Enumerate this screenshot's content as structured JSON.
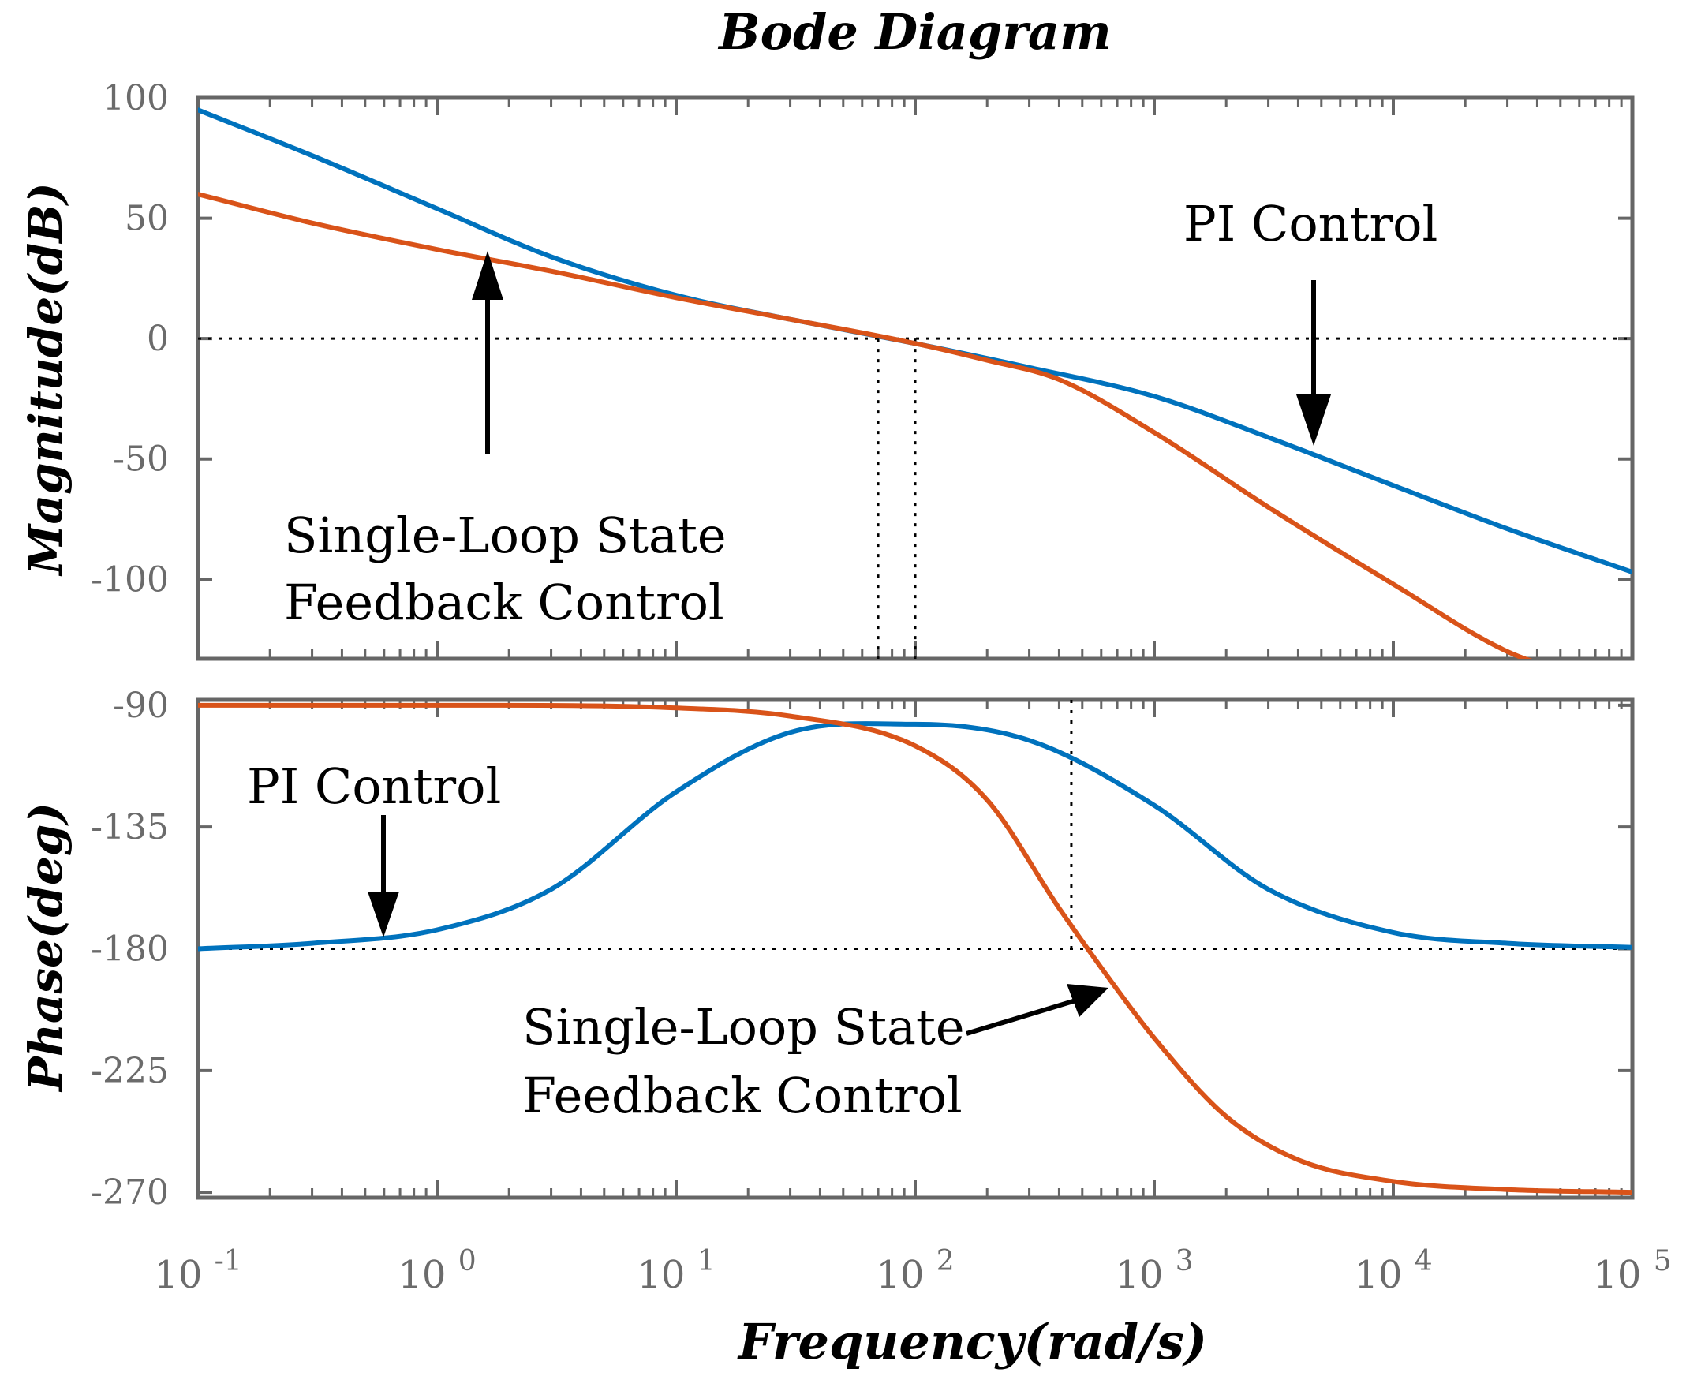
{
  "chart_data": {
    "type": "line",
    "title": "Bode Diagram",
    "xlabel": "Frequency(rad/s)",
    "xscale": "log",
    "xlim": [
      0.1,
      100000
    ],
    "x_ticks": [
      {
        "base": "10",
        "exp": "-1"
      },
      {
        "base": "10",
        "exp": "0"
      },
      {
        "base": "10",
        "exp": "1"
      },
      {
        "base": "10",
        "exp": "2"
      },
      {
        "base": "10",
        "exp": "3"
      },
      {
        "base": "10",
        "exp": "4"
      },
      {
        "base": "10",
        "exp": "5"
      }
    ],
    "panels": [
      {
        "ylabel": "Magnitude(dB)",
        "ylim": [
          -133,
          100
        ],
        "yticks": [
          "100",
          "50",
          "0",
          "-50",
          "-100"
        ],
        "reference_lines": {
          "y": 0,
          "x": [
            70,
            100
          ]
        },
        "series": [
          {
            "name": "PI Control",
            "color": "#0072BD",
            "x": [
              0.1,
              0.3,
              1,
              3,
              10,
              30,
              100,
              300,
              1000,
              3000,
              10000,
              30000,
              100000
            ],
            "y": [
              95,
              76,
              54,
              34,
              18,
              8,
              -2,
              -12,
              -24,
              -41,
              -61,
              -79,
              -97
            ]
          },
          {
            "name": "Single-Loop State Feedback Control",
            "color": "#D95319",
            "x": [
              0.1,
              0.3,
              1,
              3,
              10,
              30,
              100,
              200,
              400,
              1000,
              3000,
              10000,
              30000,
              60000
            ],
            "y": [
              60,
              48,
              37,
              28,
              17,
              8,
              -2,
              -9,
              -17,
              -39,
              -70,
              -102,
              -130,
              -140
            ]
          }
        ],
        "annotations": [
          {
            "id": "pi",
            "text": [
              "PI Control"
            ]
          },
          {
            "id": "slsf",
            "text": [
              "Single-Loop State",
              "Feedback Control"
            ]
          }
        ]
      },
      {
        "ylabel": "Phase(deg)",
        "ylim": [
          -272,
          -88
        ],
        "yticks": [
          "-90",
          "-135",
          "-180",
          "-225",
          "-270"
        ],
        "reference_lines": {
          "y": -180,
          "x": [
            450
          ]
        },
        "series": [
          {
            "name": "PI Control",
            "color": "#0072BD",
            "x": [
              0.1,
              0.3,
              1,
              3,
              10,
              30,
              100,
              300,
              1000,
              3000,
              10000,
              30000,
              100000
            ],
            "y": [
              -180,
              -178,
              -173,
              -158,
              -122,
              -100,
              -97,
              -103,
              -127,
              -158,
              -174,
              -178,
              -179.5
            ]
          },
          {
            "name": "Single-Loop State Feedback Control",
            "color": "#D95319",
            "x": [
              0.1,
              1,
              10,
              30,
              100,
              200,
              400,
              600,
              1000,
              2000,
              4000,
              10000,
              30000,
              100000
            ],
            "y": [
              -90,
              -90,
              -91,
              -94,
              -105,
              -125,
              -165,
              -187,
              -213,
              -242,
              -258,
              -266,
              -269,
              -270
            ]
          }
        ],
        "annotations": [
          {
            "id": "pi",
            "text": [
              "PI Control"
            ]
          },
          {
            "id": "slsf",
            "text": [
              "Single-Loop State",
              "Feedback Control"
            ]
          }
        ]
      }
    ],
    "grid": false
  }
}
